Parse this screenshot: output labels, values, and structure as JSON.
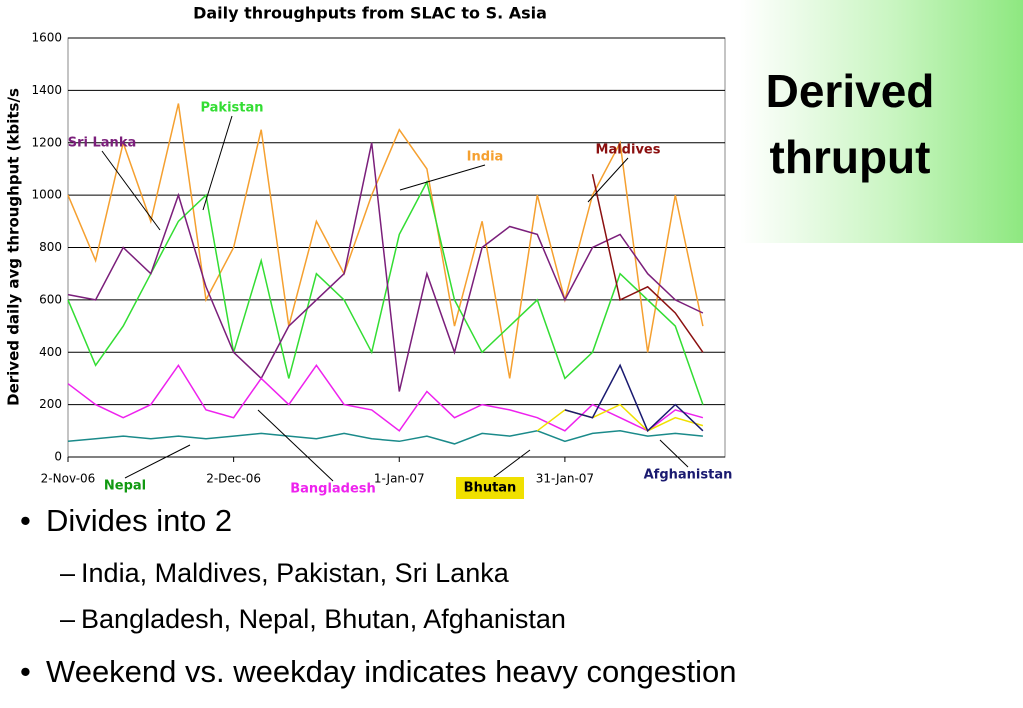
{
  "chart_data": {
    "type": "line",
    "title": "Daily throughputs from SLAC to S. Asia",
    "y_label": "Derived daily avg throughput (kbits/s",
    "x": [
      "2006-11-02",
      "2006-11-07",
      "2006-11-12",
      "2006-11-17",
      "2006-11-22",
      "2006-11-27",
      "2006-12-02",
      "2006-12-07",
      "2006-12-12",
      "2006-12-17",
      "2006-12-22",
      "2006-12-27",
      "2007-01-01",
      "2007-01-06",
      "2007-01-11",
      "2007-01-16",
      "2007-01-21",
      "2007-01-26",
      "2007-01-31",
      "2007-02-05",
      "2007-02-10",
      "2007-02-15",
      "2007-02-20",
      "2007-02-25"
    ],
    "xlim": [
      "2006-11-02",
      "2007-03-01"
    ],
    "xticks": [
      {
        "value": "2006-11-02",
        "label": "2-Nov-06"
      },
      {
        "value": "2006-12-02",
        "label": "2-Dec-06"
      },
      {
        "value": "2007-01-01",
        "label": "1-Jan-07"
      },
      {
        "value": "2007-01-31",
        "label": "31-Jan-07"
      }
    ],
    "ylim": [
      0,
      1600
    ],
    "yticks": [
      0,
      200,
      400,
      600,
      800,
      1000,
      1200,
      1400,
      1600
    ],
    "grid": true,
    "series": [
      {
        "name": "India",
        "color": "#f5a030",
        "values": [
          1000,
          750,
          1200,
          900,
          1350,
          600,
          800,
          1250,
          500,
          900,
          700,
          1000,
          1250,
          1100,
          500,
          900,
          300,
          1000,
          600,
          1000,
          1200,
          400,
          1000,
          500
        ]
      },
      {
        "name": "Pakistan",
        "color": "#33dd33",
        "values": [
          600,
          350,
          500,
          700,
          900,
          1000,
          400,
          750,
          300,
          700,
          600,
          400,
          850,
          1050,
          600,
          400,
          500,
          600,
          300,
          400,
          700,
          600,
          500,
          200
        ]
      },
      {
        "name": "Sri Lanka",
        "color": "#7b1f7b",
        "values": [
          620,
          600,
          800,
          700,
          1000,
          650,
          400,
          300,
          500,
          600,
          700,
          1200,
          250,
          700,
          400,
          800,
          880,
          850,
          600,
          800,
          850,
          700,
          600,
          550
        ]
      },
      {
        "name": "Bangladesh",
        "color": "#ee22ee",
        "values": [
          280,
          200,
          150,
          200,
          350,
          180,
          150,
          300,
          200,
          350,
          200,
          180,
          100,
          250,
          150,
          200,
          180,
          150,
          100,
          200,
          150,
          100,
          180,
          150
        ]
      },
      {
        "name": "Nepal",
        "color": "#1a8a8a",
        "values": [
          60,
          70,
          80,
          70,
          80,
          70,
          80,
          90,
          80,
          70,
          90,
          70,
          60,
          80,
          50,
          90,
          80,
          100,
          60,
          90,
          100,
          80,
          90,
          80
        ]
      },
      {
        "name": "Bhutan",
        "color": "#f0e000",
        "values": [
          null,
          null,
          null,
          null,
          null,
          null,
          null,
          null,
          null,
          null,
          null,
          null,
          null,
          null,
          null,
          null,
          null,
          100,
          180,
          150,
          200,
          100,
          150,
          120
        ]
      },
      {
        "name": "Afghanistan",
        "color": "#1a1a70",
        "values": [
          null,
          null,
          null,
          null,
          null,
          null,
          null,
          null,
          null,
          null,
          null,
          null,
          null,
          null,
          null,
          null,
          null,
          null,
          180,
          150,
          350,
          100,
          200,
          100
        ]
      },
      {
        "name": "Maldives",
        "color": "#8b1010",
        "values": [
          null,
          null,
          null,
          null,
          null,
          null,
          null,
          null,
          null,
          null,
          null,
          null,
          null,
          null,
          null,
          null,
          null,
          null,
          null,
          1080,
          600,
          650,
          550,
          400
        ]
      }
    ]
  },
  "slide": {
    "title": "Derived thruput",
    "bullets": [
      {
        "text": "Divides into 2",
        "children": [
          "India, Maldives, Pakistan, Sri Lanka",
          "Bangladesh, Nepal, Bhutan, Afghanistan"
        ]
      },
      {
        "text": "Weekend vs. weekday indicates heavy congestion",
        "children": []
      }
    ]
  }
}
